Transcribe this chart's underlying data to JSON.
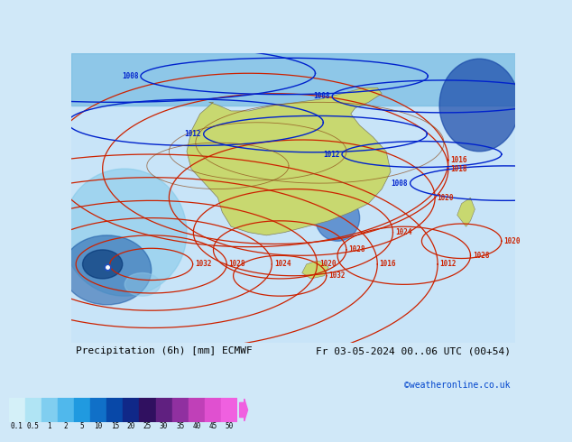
{
  "title_left": "Precipitation (6h) [mm] ECMWF",
  "title_right": "Fr 03-05-2024 00..06 UTC (00+54)",
  "credit": "©weatheronline.co.uk",
  "colorbar_levels": [
    0.1,
    0.5,
    1,
    2,
    5,
    10,
    15,
    20,
    25,
    30,
    35,
    40,
    45,
    50
  ],
  "colorbar_colors": [
    "#d4f0f8",
    "#b0e4f4",
    "#80cef0",
    "#50b8ec",
    "#209ae0",
    "#1070c8",
    "#0848a8",
    "#102888",
    "#301060",
    "#602080",
    "#9030a0",
    "#c040b8",
    "#e050d0",
    "#f060e0"
  ],
  "bg_color": "#d0e8f8",
  "map_bg": "#c8e4f8",
  "contour_color_red": "#cc2200",
  "contour_color_blue": "#0022cc",
  "contour_color_brown": "#8B4513",
  "fig_width": 6.34,
  "fig_height": 4.9,
  "dpi": 100
}
